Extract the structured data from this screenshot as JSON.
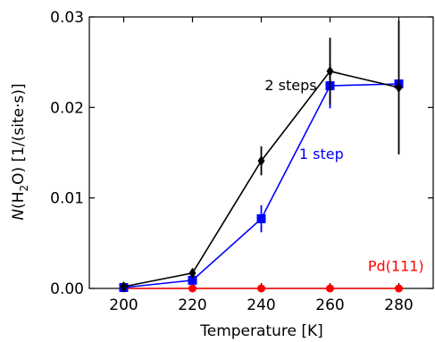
{
  "chart_data": {
    "type": "line",
    "xlabel": "Temperature [K]",
    "ylabel": {
      "italic": "N",
      "pre": "(H",
      "sub": "2",
      "post": "O) [1/(site·s)]"
    },
    "xlim": [
      190,
      290
    ],
    "ylim": [
      0,
      0.03
    ],
    "x_ticks": [
      200,
      220,
      240,
      260,
      280
    ],
    "y_ticks": [
      0.0,
      0.01,
      0.02,
      0.03
    ],
    "x_tick_labels": [
      "200",
      "220",
      "240",
      "260",
      "280"
    ],
    "y_tick_labels": [
      "0.00",
      "0.01",
      "0.02",
      "0.03"
    ],
    "grid": false,
    "series": [
      {
        "name": "2 steps",
        "color": "#000000",
        "marker": "diamond",
        "x": [
          200,
          220,
          240,
          260,
          280
        ],
        "y": [
          0.0002,
          0.0017,
          0.0141,
          0.024,
          0.0222
        ],
        "yerr": [
          0.0004,
          0.0005,
          0.0016,
          0.0037,
          0.0074
        ]
      },
      {
        "name": "1 step",
        "color": "#0000ff",
        "marker": "square",
        "x": [
          200,
          220,
          240,
          260,
          280
        ],
        "y": [
          0.0001,
          0.0009,
          0.0077,
          0.0224,
          0.0226
        ],
        "yerr": [
          0.0002,
          0.0004,
          0.0015,
          0.0025,
          0.0003
        ]
      },
      {
        "name": "Pd(111)",
        "color": "#ff0000",
        "marker": "circle",
        "x": [
          200,
          220,
          240,
          260,
          280
        ],
        "y": [
          0.0,
          0.0,
          0.0,
          0.0,
          0.0
        ],
        "yerr": [
          0,
          0,
          0,
          0,
          0
        ]
      }
    ],
    "annotations": [
      {
        "text": "2 steps",
        "color": "#000000",
        "x": 241,
        "y": 0.0219
      },
      {
        "text": "1 step",
        "color": "#0000ff",
        "x": 251,
        "y": 0.0143
      },
      {
        "text": "Pd(111)",
        "color": "#ff0000",
        "x": 271,
        "y": 0.0019
      }
    ]
  }
}
